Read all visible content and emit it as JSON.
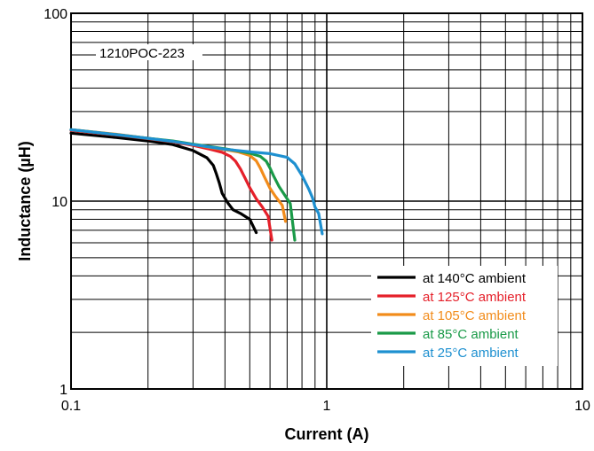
{
  "chart_data": {
    "type": "line",
    "annotation": "1210POC-223",
    "xlabel": "Current (A)",
    "ylabel": "Inductance (µH)",
    "x_scale": "log",
    "y_scale": "log",
    "xlim": [
      0.1,
      10
    ],
    "ylim": [
      1,
      100
    ],
    "x_ticks": [
      {
        "value": 0.1,
        "label": "0.1"
      },
      {
        "value": 1,
        "label": "1"
      },
      {
        "value": 10,
        "label": "10"
      }
    ],
    "y_ticks": [
      {
        "value": 1,
        "label": "1"
      },
      {
        "value": 10,
        "label": "10"
      },
      {
        "value": 100,
        "label": "100"
      }
    ],
    "grid": true,
    "legend_position": "bottom-right",
    "series": [
      {
        "name": "at 140°C ambient",
        "color": "#000000",
        "x": [
          0.1,
          0.15,
          0.2,
          0.25,
          0.3,
          0.34,
          0.36,
          0.37,
          0.38,
          0.39,
          0.41,
          0.43,
          0.46,
          0.5,
          0.53
        ],
        "y": [
          23.0,
          21.8,
          20.9,
          20.0,
          18.6,
          17.0,
          15.5,
          14.0,
          12.5,
          11.0,
          9.8,
          9.0,
          8.6,
          8.0,
          6.8
        ]
      },
      {
        "name": "at 125°C ambient",
        "color": "#e5202a",
        "x": [
          0.1,
          0.15,
          0.2,
          0.25,
          0.3,
          0.35,
          0.39,
          0.42,
          0.44,
          0.46,
          0.48,
          0.5,
          0.53,
          0.56,
          0.59,
          0.61
        ],
        "y": [
          23.8,
          22.5,
          21.5,
          20.7,
          19.8,
          18.9,
          18.2,
          17.3,
          16.3,
          14.8,
          13.2,
          11.8,
          10.3,
          9.3,
          8.3,
          6.2
        ]
      },
      {
        "name": "at 105°C ambient",
        "color": "#f28c1b",
        "x": [
          0.1,
          0.15,
          0.2,
          0.25,
          0.3,
          0.35,
          0.4,
          0.45,
          0.5,
          0.53,
          0.55,
          0.57,
          0.6,
          0.63,
          0.67,
          0.69
        ],
        "y": [
          24.0,
          22.7,
          21.6,
          20.8,
          20.0,
          19.3,
          18.8,
          18.3,
          17.5,
          16.4,
          15.0,
          13.5,
          11.7,
          10.6,
          9.5,
          7.8
        ]
      },
      {
        "name": "at 85°C ambient",
        "color": "#1a9a48",
        "x": [
          0.1,
          0.15,
          0.2,
          0.25,
          0.3,
          0.35,
          0.4,
          0.45,
          0.5,
          0.55,
          0.58,
          0.6,
          0.62,
          0.65,
          0.69,
          0.72,
          0.75
        ],
        "y": [
          24.0,
          22.6,
          21.6,
          20.9,
          20.1,
          19.5,
          19.0,
          18.5,
          18.0,
          17.3,
          16.3,
          15.0,
          13.6,
          12.0,
          10.6,
          9.7,
          6.2
        ]
      },
      {
        "name": "at 25°C ambient",
        "color": "#1e90d0",
        "x": [
          0.1,
          0.15,
          0.2,
          0.25,
          0.3,
          0.35,
          0.4,
          0.5,
          0.6,
          0.7,
          0.75,
          0.8,
          0.85,
          0.88,
          0.9,
          0.93,
          0.96
        ],
        "y": [
          24.0,
          22.6,
          21.6,
          20.8,
          20.0,
          19.4,
          18.9,
          18.3,
          17.9,
          17.1,
          15.8,
          13.7,
          11.6,
          10.4,
          9.3,
          8.6,
          6.7
        ]
      }
    ]
  }
}
